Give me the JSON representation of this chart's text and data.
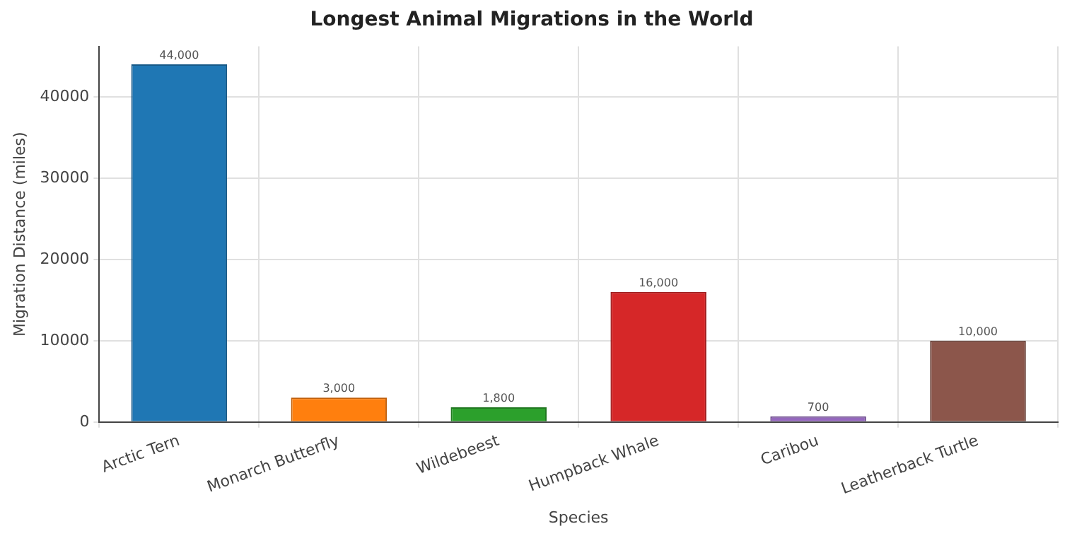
{
  "chart_data": {
    "type": "bar",
    "title": "Longest Animal Migrations in the World",
    "xlabel": "Species",
    "ylabel": "Migration Distance (miles)",
    "categories": [
      "Arctic Tern",
      "Monarch Butterfly",
      "Wildebeest",
      "Humpback Whale",
      "Caribou",
      "Leatherback Turtle"
    ],
    "values": [
      44000,
      3000,
      1800,
      16000,
      700,
      10000
    ],
    "colors": [
      "#1f77b4",
      "#ff7f0e",
      "#2ca02c",
      "#d62728",
      "#9467bd",
      "#8c564b"
    ],
    "value_labels": [
      "44,000",
      "3,000",
      "1,800",
      "16,000",
      "700",
      "10,000"
    ],
    "ylim": [
      0,
      46200
    ],
    "yticks": [
      0,
      10000,
      20000,
      30000,
      40000
    ],
    "grid": true,
    "legend": false
  }
}
